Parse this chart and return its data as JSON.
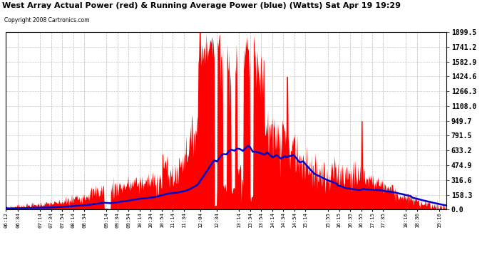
{
  "title": "West Array Actual Power (red) & Running Average Power (blue) (Watts) Sat Apr 19 19:29",
  "copyright": "Copyright 2008 Cartronics.com",
  "y_ticks": [
    0.0,
    158.3,
    316.6,
    474.9,
    633.2,
    791.5,
    949.7,
    1108.0,
    1266.3,
    1424.6,
    1582.9,
    1741.2,
    1899.5
  ],
  "ymax": 1899.5,
  "ymin": 0.0,
  "x_labels": [
    "06:12",
    "06:34",
    "07:14",
    "07:34",
    "07:54",
    "08:14",
    "08:34",
    "09:14",
    "09:34",
    "09:54",
    "10:14",
    "10:34",
    "10:54",
    "11:14",
    "11:34",
    "12:04",
    "12:34",
    "13:14",
    "13:34",
    "13:54",
    "14:14",
    "14:34",
    "14:54",
    "15:14",
    "15:55",
    "16:15",
    "16:35",
    "16:55",
    "17:15",
    "17:35",
    "18:16",
    "18:36",
    "19:16"
  ],
  "background_color": "#ffffff",
  "fill_color": "#ff0000",
  "line_color": "#0000cc",
  "grid_color": "#cccccc",
  "title_color": "#000000"
}
